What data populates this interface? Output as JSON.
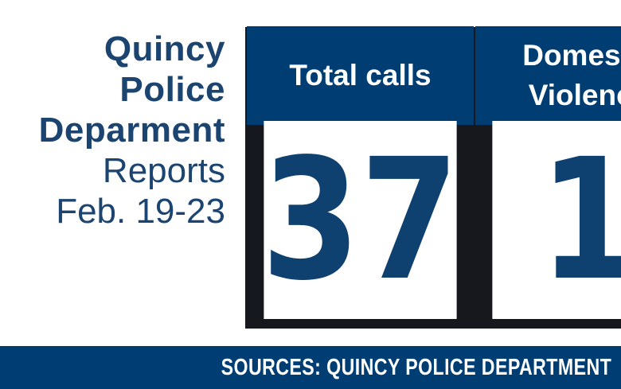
{
  "title": {
    "lines": [
      {
        "text": "Quincy"
      },
      {
        "text": "Police"
      },
      {
        "text": "Deparment"
      },
      {
        "text": "Reports"
      },
      {
        "text": "Feb. 19-23"
      }
    ]
  },
  "table": {
    "columns": [
      {
        "header": "Total calls",
        "value": "37"
      },
      {
        "header": "Domestic Violence",
        "value": "1"
      }
    ]
  },
  "footer": {
    "sources_label": "SOURCES: QUINCY POLICE DEPARTMENT"
  },
  "colors": {
    "brand_blue_fill": "#003d72",
    "title_text_navy": "#1b4470",
    "number_navy": "#0e4170",
    "table_border": "#16181d",
    "header_text": "#ffffff",
    "background": "#ffffff"
  },
  "chart_data": {
    "type": "table",
    "title": "Quincy Police Deparment Reports Feb. 19-23",
    "columns": [
      "Total calls",
      "Domestic Violence"
    ],
    "values": [
      37,
      1
    ],
    "source": "SOURCES: QUINCY POLICE DEPARTMENT",
    "layout": "two-column stat table; second column cropped by right edge of image; source bar along bottom"
  }
}
